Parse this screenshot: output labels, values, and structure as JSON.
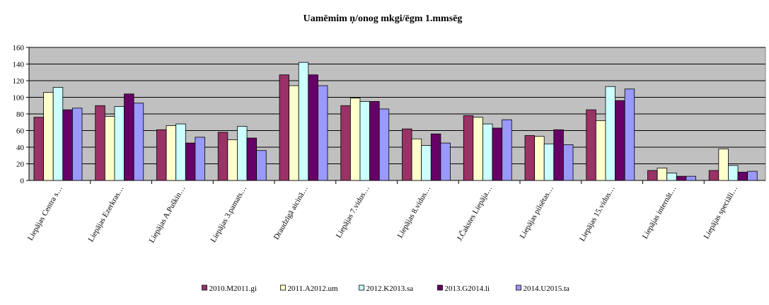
{
  "chart_data": {
    "type": "bar",
    "title": "Uamēmim ņ/onog mkgi/ēgm 1.mmsēg",
    "xlabel": "",
    "ylabel": "",
    "ylim": [
      0,
      160
    ],
    "yticks": [
      0,
      20,
      40,
      60,
      80,
      100,
      120,
      140,
      160
    ],
    "grid": true,
    "legend_position": "bottom",
    "plot_background": "#c0c0c0",
    "categories": [
      "Liepājas Centra s…",
      "Liepājas Ezerkras…",
      "Liepājas A.Puškin…",
      "Liepājas 3.pamats…",
      "Draudzīgā aicinā…",
      "Liepājas 7.vidus…",
      "Liepājas 8.vidus…",
      "J.Čakstes Liepāja…",
      "Liepājas pilsētas…",
      "Liepājas 15.vidus…",
      "Liepājas internāt…",
      "Liepājas speciāli…"
    ],
    "series": [
      {
        "name": "2010.M2011.gi",
        "color": "#993366",
        "values": [
          76,
          90,
          61,
          58,
          127,
          90,
          62,
          78,
          54,
          85,
          12,
          12
        ]
      },
      {
        "name": "2011.A2012.um",
        "color": "#ffffcc",
        "values": [
          106,
          77,
          66,
          49,
          114,
          99,
          50,
          76,
          53,
          72,
          15,
          38
        ]
      },
      {
        "name": "2012.K2013.sa",
        "color": "#ccffff",
        "values": [
          112,
          89,
          68,
          65,
          142,
          95,
          42,
          68,
          44,
          113,
          9,
          18
        ]
      },
      {
        "name": "2013.G2014.li",
        "color": "#660066",
        "values": [
          85,
          104,
          45,
          51,
          127,
          95,
          56,
          63,
          61,
          96,
          5,
          10
        ]
      },
      {
        "name": "2014.U2015.ta",
        "color": "#9999ff",
        "values": [
          87,
          93,
          52,
          36,
          114,
          86,
          45,
          73,
          43,
          110,
          5,
          11
        ]
      }
    ]
  }
}
